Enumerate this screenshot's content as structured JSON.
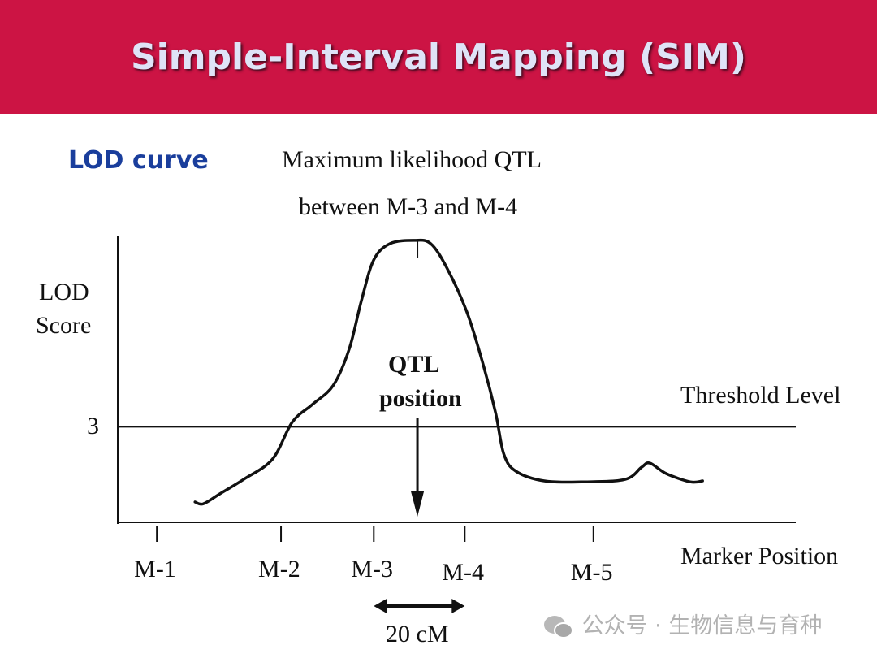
{
  "title": "Simple-Interval Mapping (SIM)",
  "subtitle": "LOD curve",
  "watermark": "公众号 · 生物信息与育种",
  "chart_data": {
    "type": "line",
    "title_lines": [
      "Maximum likelihood QTL",
      "between M-3  and M-4"
    ],
    "ylabel_lines": [
      "LOD",
      "Score"
    ],
    "xlabel": "Marker Position",
    "xlim": [
      -8.6,
      140.5
    ],
    "ylim": [
      0,
      9
    ],
    "threshold": {
      "value": 3,
      "label": "Threshold Level",
      "tick_label": "3"
    },
    "markers": [
      {
        "name": "M-1",
        "x": 0
      },
      {
        "name": "M-2",
        "x": 27.3
      },
      {
        "name": "M-3",
        "x": 47.7
      },
      {
        "name": "M-4",
        "x": 67.7
      },
      {
        "name": "M-5",
        "x": 96
      }
    ],
    "qtl": {
      "x": 57.3,
      "label_lines": [
        "QTL",
        "position"
      ]
    },
    "scale_bar": {
      "label": "20 cM",
      "cM": 20
    },
    "series": [
      {
        "name": "LOD",
        "x": [
          8.4,
          10.2,
          13.8,
          19.1,
          25.4,
          29.8,
          34.3,
          38.8,
          42.3,
          45.0,
          47.7,
          51.3,
          56.6,
          60.2,
          63.8,
          68.2,
          71.8,
          74.5,
          76.3,
          79.0,
          85.2,
          94.1,
          103.0,
          106.6,
          108.4,
          112.0,
          117.3,
          120.0
        ],
        "y": [
          0.64,
          0.58,
          0.89,
          1.35,
          1.98,
          3.15,
          3.71,
          4.3,
          5.44,
          6.97,
          8.24,
          8.75,
          8.85,
          8.75,
          7.98,
          6.59,
          4.93,
          3.43,
          2.14,
          1.6,
          1.3,
          1.27,
          1.35,
          1.73,
          1.86,
          1.53,
          1.27,
          1.3
        ]
      }
    ]
  }
}
